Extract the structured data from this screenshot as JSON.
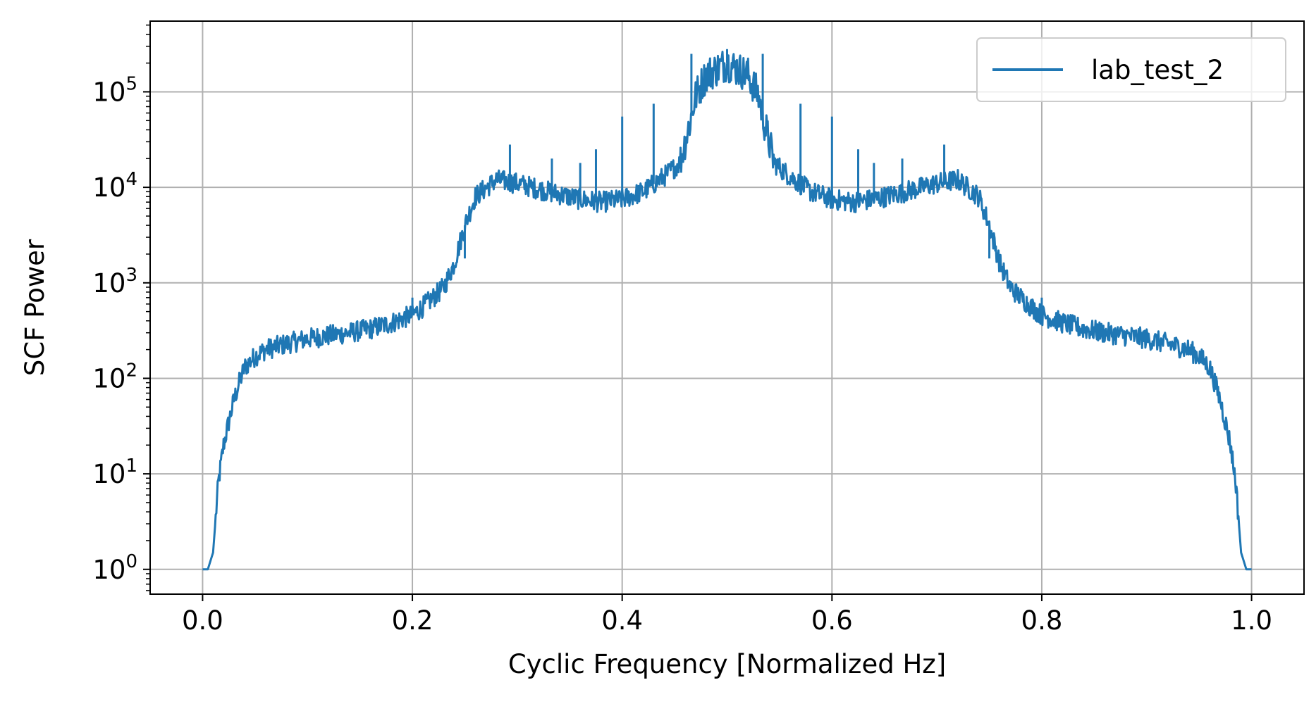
{
  "chart_data": {
    "type": "line",
    "xlabel": "Cyclic Frequency [Normalized Hz]",
    "ylabel": "SCF Power",
    "xlim": [
      -0.05,
      1.05
    ],
    "ylim": [
      0.55,
      550000
    ],
    "yscale": "log",
    "grid": true,
    "legend_position": "top-right",
    "x_ticks": [
      {
        "value": 0.0,
        "label": "0.0"
      },
      {
        "value": 0.2,
        "label": "0.2"
      },
      {
        "value": 0.4,
        "label": "0.4"
      },
      {
        "value": 0.6,
        "label": "0.6"
      },
      {
        "value": 0.8,
        "label": "0.8"
      },
      {
        "value": 1.0,
        "label": "1.0"
      }
    ],
    "y_ticks": [
      {
        "value": 1,
        "base": "10",
        "exp": "0"
      },
      {
        "value": 10,
        "base": "10",
        "exp": "1"
      },
      {
        "value": 100,
        "base": "10",
        "exp": "2"
      },
      {
        "value": 1000,
        "base": "10",
        "exp": "3"
      },
      {
        "value": 10000,
        "base": "10",
        "exp": "4"
      },
      {
        "value": 100000,
        "base": "10",
        "exp": "5"
      }
    ],
    "series": [
      {
        "name": "lab_test_2",
        "color": "#1f77b4",
        "envelope": [
          [
            0.0,
            1
          ],
          [
            0.005,
            1
          ],
          [
            0.01,
            1.5
          ],
          [
            0.015,
            8
          ],
          [
            0.02,
            20
          ],
          [
            0.025,
            35
          ],
          [
            0.03,
            60
          ],
          [
            0.035,
            90
          ],
          [
            0.04,
            130
          ],
          [
            0.05,
            170
          ],
          [
            0.06,
            200
          ],
          [
            0.08,
            230
          ],
          [
            0.1,
            260
          ],
          [
            0.12,
            280
          ],
          [
            0.14,
            300
          ],
          [
            0.16,
            330
          ],
          [
            0.18,
            380
          ],
          [
            0.19,
            420
          ],
          [
            0.2,
            460
          ],
          [
            0.21,
            560
          ],
          [
            0.22,
            700
          ],
          [
            0.23,
            900
          ],
          [
            0.24,
            1600
          ],
          [
            0.25,
            4000
          ],
          [
            0.26,
            8000
          ],
          [
            0.28,
            12000
          ],
          [
            0.3,
            11000
          ],
          [
            0.33,
            9000
          ],
          [
            0.36,
            7500
          ],
          [
            0.38,
            7000
          ],
          [
            0.4,
            7500
          ],
          [
            0.42,
            9000
          ],
          [
            0.44,
            13000
          ],
          [
            0.455,
            18000
          ],
          [
            0.465,
            50000
          ],
          [
            0.47,
            90000
          ],
          [
            0.48,
            150000
          ],
          [
            0.5,
            200000
          ],
          [
            0.52,
            150000
          ],
          [
            0.53,
            90000
          ],
          [
            0.535,
            50000
          ],
          [
            0.545,
            18000
          ],
          [
            0.56,
            13000
          ],
          [
            0.58,
            9000
          ],
          [
            0.6,
            7500
          ],
          [
            0.62,
            7000
          ],
          [
            0.64,
            7500
          ],
          [
            0.67,
            9000
          ],
          [
            0.7,
            11000
          ],
          [
            0.72,
            12000
          ],
          [
            0.74,
            8000
          ],
          [
            0.75,
            4000
          ],
          [
            0.76,
            1600
          ],
          [
            0.77,
            900
          ],
          [
            0.78,
            700
          ],
          [
            0.79,
            560
          ],
          [
            0.8,
            460
          ],
          [
            0.81,
            420
          ],
          [
            0.82,
            380
          ],
          [
            0.84,
            330
          ],
          [
            0.86,
            300
          ],
          [
            0.88,
            280
          ],
          [
            0.9,
            260
          ],
          [
            0.92,
            230
          ],
          [
            0.94,
            200
          ],
          [
            0.95,
            170
          ],
          [
            0.96,
            130
          ],
          [
            0.965,
            90
          ],
          [
            0.97,
            60
          ],
          [
            0.975,
            35
          ],
          [
            0.98,
            20
          ],
          [
            0.985,
            8
          ],
          [
            0.99,
            1.5
          ],
          [
            0.995,
            1
          ],
          [
            1.0,
            1
          ]
        ],
        "spikes": [
          [
            0.2,
            700
          ],
          [
            0.25,
            1800
          ],
          [
            0.293,
            28000
          ],
          [
            0.333,
            20000
          ],
          [
            0.36,
            18000
          ],
          [
            0.375,
            25000
          ],
          [
            0.4,
            55000
          ],
          [
            0.43,
            75000
          ],
          [
            0.466,
            250000
          ],
          [
            0.5,
            280000
          ],
          [
            0.534,
            250000
          ],
          [
            0.57,
            75000
          ],
          [
            0.6,
            55000
          ],
          [
            0.625,
            25000
          ],
          [
            0.64,
            18000
          ],
          [
            0.667,
            20000
          ],
          [
            0.707,
            28000
          ],
          [
            0.75,
            1800
          ],
          [
            0.8,
            700
          ]
        ]
      }
    ]
  }
}
